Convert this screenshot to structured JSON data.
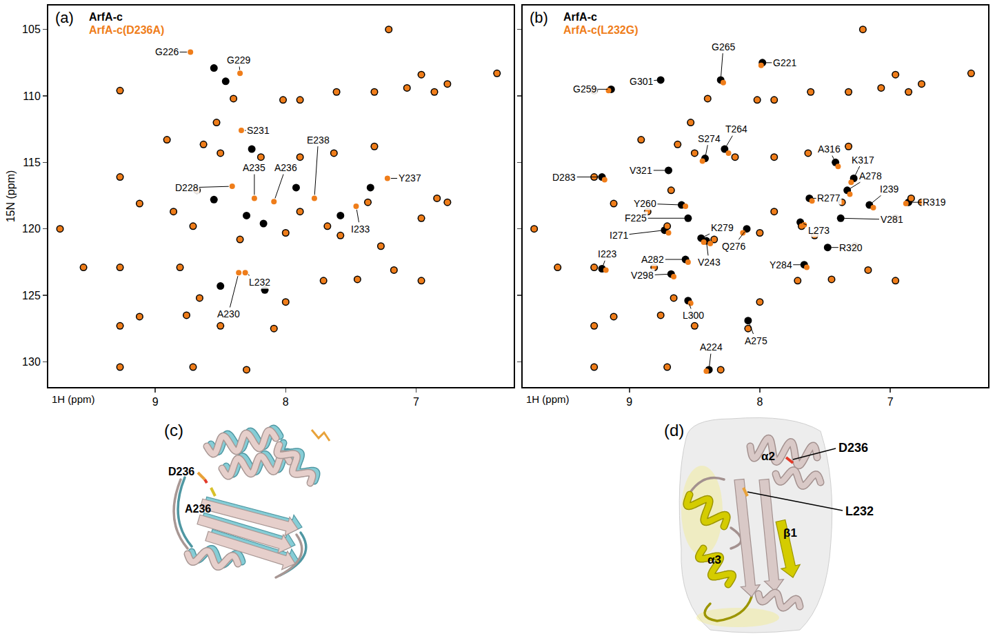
{
  "chart_data": [
    {
      "type": "scatter",
      "panel": "(a)",
      "x_label": "1H (ppm)",
      "y_label": "15N (ppm)",
      "xlim": [
        9.82,
        6.25
      ],
      "ylim": [
        131.9,
        103.2
      ],
      "xticks": [
        9,
        8,
        7
      ],
      "yticks": [
        105,
        110,
        115,
        120,
        125,
        130
      ],
      "grid": false,
      "legend": "upper left",
      "tick_labels": true,
      "series": [
        {
          "name": "ArfA-c",
          "color": "#000000",
          "marker": "circle",
          "x": [
            7.21,
            6.38,
            9.27,
            6.96,
            6.86,
            7.32,
            7.61,
            7.89,
            8.02,
            8.4,
            8.53,
            8.91,
            8.63,
            8.5,
            8.19,
            7.63,
            7.32,
            9.27,
            8.68,
            7.89,
            9.12,
            9.73,
            7.89,
            7.68,
            7.37,
            6.76,
            8.86,
            8.71,
            8.35,
            8.0,
            7.58,
            7.27,
            6.96,
            9.55,
            9.27,
            8.81,
            8.66,
            8.76,
            8.5,
            9.27,
            9.12,
            8.0,
            8.09,
            9.27,
            8.71,
            8.3,
            7.71,
            7.45,
            7.17,
            6.96,
            6.84,
            7.07,
            6.76,
            8.55,
            8.46,
            8.26,
            8.3,
            8.17,
            7.92,
            7.35,
            8.55,
            7.58,
            8.16,
            8.5
          ],
          "y": [
            105.0,
            108.3,
            109.6,
            108.4,
            109.7,
            109.7,
            109.7,
            110.3,
            110.3,
            110.2,
            112.0,
            113.3,
            113.65,
            114.3,
            114.6,
            114.3,
            113.8,
            116.1,
            117.1,
            114.6,
            118.1,
            120.0,
            118.7,
            119.8,
            118.0,
            118.0,
            118.7,
            119.8,
            120.8,
            120.3,
            120.5,
            121.3,
            119.2,
            122.9,
            122.9,
            122.9,
            125.2,
            126.5,
            127.3,
            127.3,
            126.6,
            125.5,
            127.5,
            130.4,
            130.4,
            130.6,
            123.9,
            123.8,
            123.1,
            123.9,
            117.7,
            109.4,
            109.1,
            107.9,
            108.9,
            114.0,
            119.0,
            119.6,
            116.9,
            116.9,
            117.8,
            119.0,
            124.6,
            124.3
          ]
        },
        {
          "name": "ArfA-c(D236A)",
          "color": "#ef7d1a",
          "marker": "circle",
          "x": [
            7.21,
            6.38,
            9.27,
            6.96,
            6.86,
            7.32,
            7.61,
            7.89,
            8.02,
            8.4,
            8.53,
            8.91,
            8.63,
            8.5,
            8.19,
            7.63,
            7.32,
            9.27,
            8.68,
            7.89,
            9.12,
            9.73,
            7.89,
            7.68,
            7.37,
            6.76,
            8.86,
            8.71,
            8.35,
            8.0,
            7.58,
            7.27,
            6.96,
            9.55,
            9.27,
            8.81,
            8.66,
            8.76,
            8.5,
            9.27,
            9.12,
            8.0,
            8.09,
            9.27,
            8.71,
            8.3,
            7.71,
            7.45,
            7.17,
            6.96,
            6.84,
            7.07,
            6.76,
            8.73,
            8.35,
            8.34,
            8.24,
            8.09,
            7.78,
            7.22,
            8.41,
            7.46,
            8.31,
            8.36
          ],
          "y": [
            105.0,
            108.3,
            109.6,
            108.4,
            109.7,
            109.7,
            109.7,
            110.3,
            110.3,
            110.2,
            112.0,
            113.3,
            113.65,
            114.3,
            114.6,
            114.3,
            113.8,
            116.1,
            117.1,
            114.6,
            118.1,
            120.0,
            118.7,
            119.8,
            118.0,
            118.0,
            118.7,
            119.8,
            120.8,
            120.3,
            120.5,
            121.3,
            119.2,
            122.9,
            122.9,
            122.9,
            125.2,
            126.5,
            127.3,
            127.3,
            126.6,
            125.5,
            127.5,
            130.4,
            130.4,
            130.6,
            123.9,
            123.8,
            123.1,
            123.9,
            117.7,
            109.4,
            109.1,
            106.7,
            108.3,
            112.6,
            117.7,
            117.95,
            117.7,
            116.2,
            116.8,
            118.3,
            123.3,
            123.3
          ]
        }
      ],
      "annotations": [
        {
          "text": "G226",
          "x": 8.73,
          "y": 106.7,
          "label_x": 8.91,
          "label_y": 106.7
        },
        {
          "text": "G229",
          "x": 8.35,
          "y": 108.3,
          "label_x": 8.36,
          "label_y": 107.3
        },
        {
          "text": "S231",
          "x": 8.34,
          "y": 112.6,
          "label_x": 8.21,
          "label_y": 112.6
        },
        {
          "text": "A235",
          "x": 8.24,
          "y": 117.7,
          "label_x": 8.24,
          "label_y": 115.4
        },
        {
          "text": "A236",
          "x": 8.09,
          "y": 117.95,
          "label_x": 8.0,
          "label_y": 115.4
        },
        {
          "text": "E238",
          "x": 7.78,
          "y": 117.7,
          "label_x": 7.75,
          "label_y": 113.3
        },
        {
          "text": "Y237",
          "x": 7.22,
          "y": 116.2,
          "label_x": 7.05,
          "label_y": 116.2
        },
        {
          "text": "D228",
          "x": 8.41,
          "y": 116.8,
          "label_x": 8.76,
          "label_y": 116.9
        },
        {
          "text": "I233",
          "x": 7.46,
          "y": 118.3,
          "label_x": 7.43,
          "label_y": 120.0
        },
        {
          "text": "L232",
          "x": 8.31,
          "y": 123.3,
          "label_x": 8.2,
          "label_y": 124.0
        },
        {
          "text": "A230",
          "x": 8.36,
          "y": 123.3,
          "label_x": 8.44,
          "label_y": 126.4
        }
      ]
    },
    {
      "type": "scatter",
      "panel": "(b)",
      "x_label": "1H (ppm)",
      "xlim": [
        9.82,
        6.25
      ],
      "ylim": [
        131.9,
        103.2
      ],
      "xticks": [
        9,
        8,
        7
      ],
      "yticks": [
        105,
        110,
        115,
        120,
        125,
        130
      ],
      "grid": false,
      "legend": "upper left",
      "tick_labels": "x",
      "series": [
        {
          "name": "ArfA-c",
          "color": "#000000",
          "marker": "circle",
          "x": [
            7.21,
            6.38,
            9.27,
            6.96,
            6.86,
            7.32,
            7.61,
            7.89,
            8.02,
            8.4,
            8.53,
            8.91,
            8.63,
            8.5,
            8.19,
            7.63,
            7.32,
            9.27,
            8.68,
            7.89,
            9.12,
            9.73,
            7.89,
            7.68,
            7.37,
            6.76,
            8.86,
            8.71,
            8.35,
            8.0,
            7.58,
            7.27,
            6.96,
            9.55,
            9.27,
            8.81,
            8.66,
            8.76,
            8.5,
            9.27,
            9.12,
            8.0,
            8.09,
            9.27,
            8.71,
            8.3,
            7.71,
            7.45,
            7.17,
            6.96,
            6.84,
            7.07,
            6.76,
            8.3,
            7.98,
            8.76,
            9.14,
            8.27,
            8.42,
            7.42,
            7.28,
            7.33,
            9.21,
            8.7,
            7.62,
            7.16,
            6.86,
            8.6,
            8.55,
            7.38,
            7.69,
            8.73,
            8.45,
            8.1,
            8.41,
            7.48,
            9.21,
            8.57,
            8.68,
            7.66,
            8.55,
            8.09,
            8.39
          ],
          "y": [
            105.0,
            108.3,
            109.6,
            108.4,
            109.7,
            109.7,
            109.7,
            110.3,
            110.3,
            110.2,
            112.0,
            113.3,
            113.65,
            114.3,
            114.6,
            114.3,
            113.8,
            116.1,
            117.1,
            114.6,
            118.1,
            120.0,
            118.7,
            119.8,
            118.0,
            118.0,
            118.7,
            119.8,
            120.8,
            120.3,
            120.5,
            121.3,
            119.2,
            122.9,
            122.9,
            122.9,
            125.2,
            126.5,
            127.3,
            127.3,
            126.6,
            125.5,
            127.5,
            130.4,
            130.4,
            130.6,
            123.9,
            123.8,
            123.1,
            123.9,
            117.7,
            109.4,
            109.1,
            108.8,
            107.5,
            108.8,
            109.5,
            114.0,
            114.7,
            115.0,
            116.2,
            117.1,
            116.1,
            115.6,
            117.7,
            118.2,
            118.0,
            118.2,
            119.2,
            119.2,
            119.5,
            120.1,
            120.7,
            120.0,
            120.9,
            121.4,
            123.0,
            122.3,
            123.4,
            122.7,
            125.4,
            126.9,
            130.6
          ]
        },
        {
          "name": "ArfA-c(L232G)",
          "color": "#ef7d1a",
          "marker": "circle",
          "x": [
            7.21,
            6.38,
            9.27,
            6.96,
            6.86,
            7.32,
            7.61,
            7.89,
            8.02,
            8.4,
            8.53,
            8.91,
            8.63,
            8.5,
            8.19,
            7.63,
            7.32,
            9.27,
            8.68,
            7.89,
            9.12,
            9.73,
            7.89,
            7.68,
            7.37,
            6.76,
            8.86,
            8.71,
            8.35,
            8.0,
            7.58,
            7.27,
            6.96,
            9.55,
            9.27,
            8.81,
            8.66,
            8.76,
            8.5,
            9.27,
            9.12,
            8.0,
            8.09,
            9.27,
            8.71,
            8.3,
            7.71,
            7.45,
            7.17,
            6.96,
            6.84,
            7.07,
            6.76,
            8.28,
            7.99,
            9.16,
            8.24,
            8.44,
            7.4,
            7.3,
            7.31,
            9.19,
            7.6,
            7.13,
            6.88,
            8.57,
            7.66,
            8.7,
            8.43,
            8.13,
            8.38,
            9.18,
            8.55,
            8.66,
            7.64,
            8.53,
            8.41
          ],
          "y": [
            105.0,
            108.3,
            109.6,
            108.4,
            109.7,
            109.7,
            109.7,
            110.3,
            110.3,
            110.2,
            112.0,
            113.3,
            113.65,
            114.3,
            114.6,
            114.3,
            113.8,
            116.1,
            117.1,
            114.6,
            118.1,
            120.0,
            118.7,
            119.8,
            118.0,
            118.0,
            118.7,
            119.8,
            120.8,
            120.3,
            120.5,
            121.3,
            119.2,
            122.9,
            122.9,
            122.9,
            125.2,
            126.5,
            127.3,
            127.3,
            126.6,
            125.5,
            127.5,
            130.4,
            130.4,
            130.6,
            123.9,
            123.8,
            123.1,
            123.9,
            117.7,
            109.4,
            109.1,
            109.0,
            107.7,
            109.6,
            114.3,
            114.9,
            115.3,
            116.5,
            117.4,
            116.3,
            117.9,
            118.4,
            118.1,
            118.3,
            119.7,
            120.3,
            121.0,
            120.3,
            121.1,
            123.1,
            122.5,
            123.6,
            122.9,
            125.6,
            130.7
          ]
        }
      ],
      "annotations": [
        {
          "text": "G265",
          "x": 8.3,
          "y": 108.8,
          "label_x": 8.28,
          "label_y": 106.3
        },
        {
          "text": "G221",
          "x": 7.98,
          "y": 107.5,
          "label_x": 7.81,
          "label_y": 107.5
        },
        {
          "text": "G301",
          "x": 8.76,
          "y": 108.8,
          "label_x": 8.91,
          "label_y": 108.9
        },
        {
          "text": "G259",
          "x": 9.14,
          "y": 109.5,
          "label_x": 9.34,
          "label_y": 109.5
        },
        {
          "text": "T264",
          "x": 8.27,
          "y": 114.0,
          "label_x": 8.18,
          "label_y": 112.5
        },
        {
          "text": "S274",
          "x": 8.42,
          "y": 114.7,
          "label_x": 8.39,
          "label_y": 113.2
        },
        {
          "text": "A316",
          "x": 7.42,
          "y": 115.0,
          "label_x": 7.47,
          "label_y": 114.0
        },
        {
          "text": "K317",
          "x": 7.28,
          "y": 116.2,
          "label_x": 7.21,
          "label_y": 114.8
        },
        {
          "text": "A278",
          "x": 7.33,
          "y": 117.1,
          "label_x": 7.15,
          "label_y": 116.0
        },
        {
          "text": "D283",
          "x": 9.21,
          "y": 116.1,
          "label_x": 9.5,
          "label_y": 116.1
        },
        {
          "text": "V321",
          "x": 8.7,
          "y": 115.6,
          "label_x": 8.91,
          "label_y": 115.6
        },
        {
          "text": "R277",
          "x": 7.62,
          "y": 117.7,
          "label_x": 7.47,
          "label_y": 117.7
        },
        {
          "text": "I239",
          "x": 7.16,
          "y": 118.2,
          "label_x": 7.01,
          "label_y": 117.0
        },
        {
          "text": "R319",
          "x": 6.86,
          "y": 118.0,
          "label_x": 6.66,
          "label_y": 118.0
        },
        {
          "text": "Y260",
          "x": 8.6,
          "y": 118.2,
          "label_x": 8.88,
          "label_y": 118.1
        },
        {
          "text": "F225",
          "x": 8.55,
          "y": 119.2,
          "label_x": 8.95,
          "label_y": 119.2
        },
        {
          "text": "V281",
          "x": 7.38,
          "y": 119.2,
          "label_x": 6.99,
          "label_y": 119.3
        },
        {
          "text": "L273",
          "x": 7.69,
          "y": 119.5,
          "label_x": 7.55,
          "label_y": 120.1
        },
        {
          "text": "I271",
          "x": 8.73,
          "y": 120.1,
          "label_x": 9.08,
          "label_y": 120.5
        },
        {
          "text": "K279",
          "x": 8.45,
          "y": 120.7,
          "label_x": 8.29,
          "label_y": 119.9
        },
        {
          "text": "Q276",
          "x": 8.1,
          "y": 120.0,
          "label_x": 8.2,
          "label_y": 121.3
        },
        {
          "text": "V243",
          "x": 8.41,
          "y": 120.9,
          "label_x": 8.39,
          "label_y": 122.5
        },
        {
          "text": "R320",
          "x": 7.48,
          "y": 121.4,
          "label_x": 7.3,
          "label_y": 121.4
        },
        {
          "text": "I223",
          "x": 9.21,
          "y": 123.0,
          "label_x": 9.17,
          "label_y": 121.9
        },
        {
          "text": "A282",
          "x": 8.57,
          "y": 122.3,
          "label_x": 8.82,
          "label_y": 122.3
        },
        {
          "text": "V298",
          "x": 8.68,
          "y": 123.4,
          "label_x": 8.9,
          "label_y": 123.5
        },
        {
          "text": "Y284",
          "x": 7.66,
          "y": 122.7,
          "label_x": 7.84,
          "label_y": 122.7
        },
        {
          "text": "L300",
          "x": 8.55,
          "y": 125.4,
          "label_x": 8.51,
          "label_y": 126.5
        },
        {
          "text": "A275",
          "x": 8.09,
          "y": 126.9,
          "label_x": 8.03,
          "label_y": 128.4
        },
        {
          "text": "A224",
          "x": 8.39,
          "y": 130.6,
          "label_x": 8.37,
          "label_y": 128.9
        }
      ]
    }
  ],
  "structures": [
    {
      "panel": "(c)",
      "labels": [
        "D236",
        "A236"
      ]
    },
    {
      "panel": "(d)",
      "labels": [
        "α2",
        "D236",
        "L232",
        "β1",
        "α3"
      ]
    }
  ]
}
